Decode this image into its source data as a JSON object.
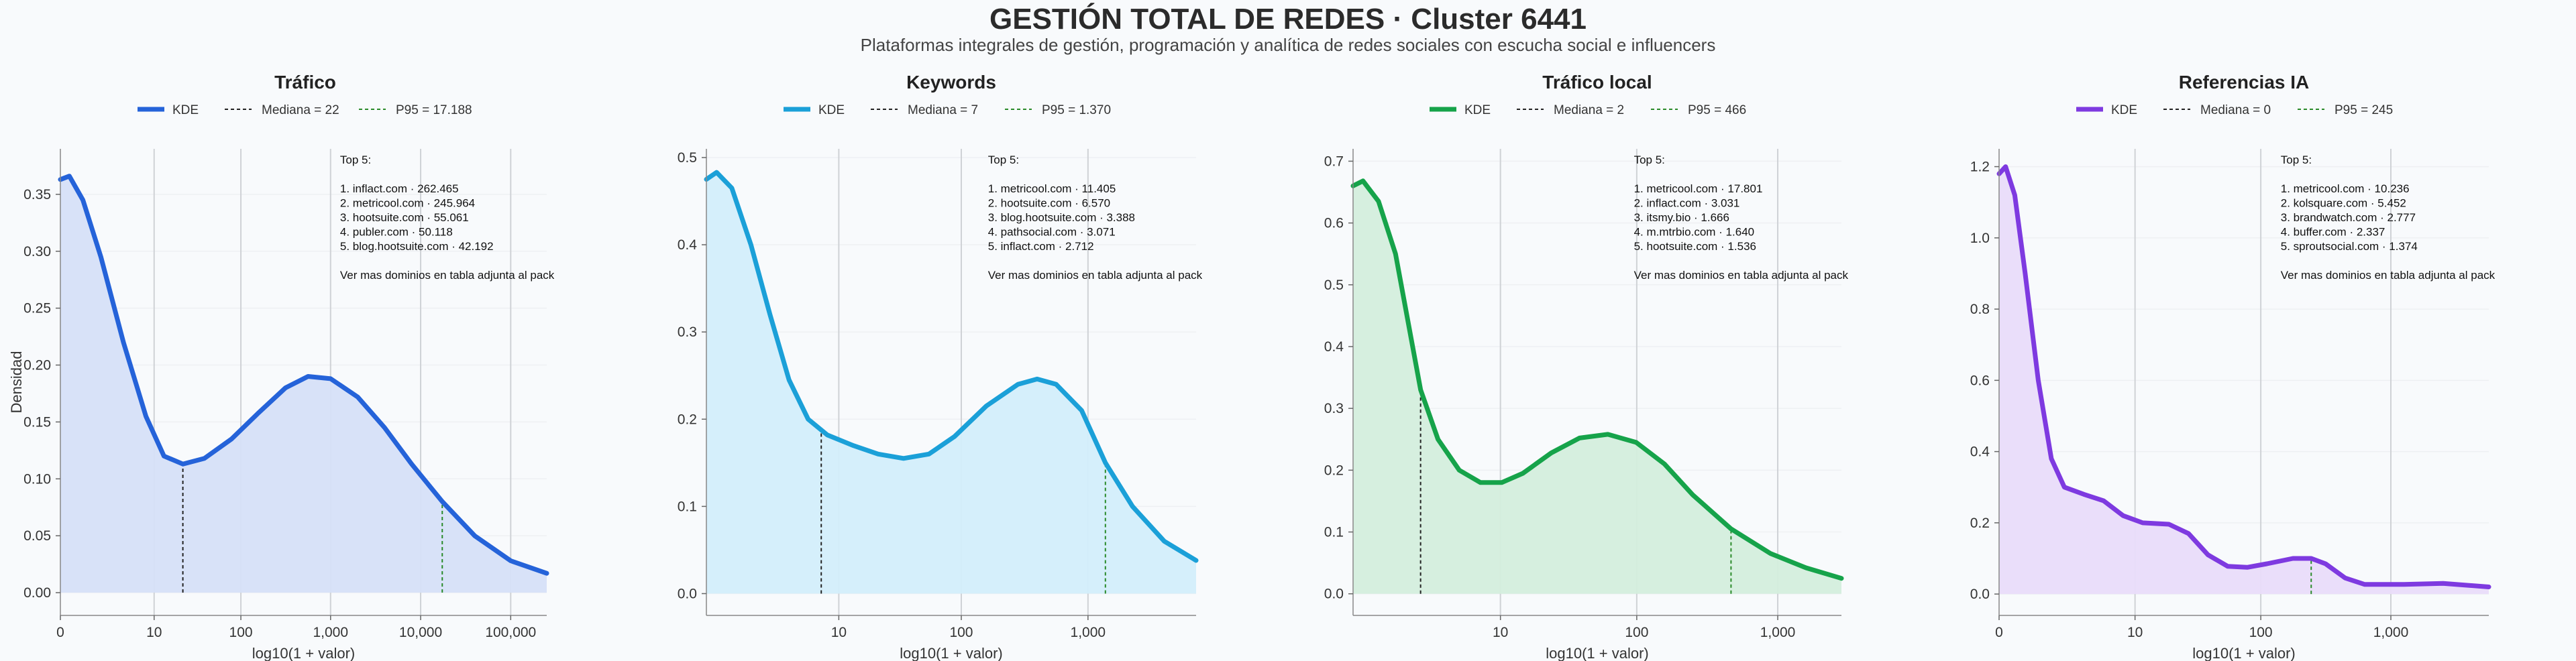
{
  "title": "GESTIÓN TOTAL DE REDES · Cluster 6441",
  "subtitle": "Plataformas integrales de gestión, programación y analítica de redes sociales con escucha social e influencers",
  "ylabel": "Densidad",
  "chart_data": [
    {
      "type": "area",
      "title": "Tráfico",
      "color": "#2563d9",
      "fill": "#d6e0f8",
      "legend": [
        "KDE",
        "Mediana = 22",
        "P95 = 17.188"
      ],
      "xlabel": "log10(1 + valor)",
      "xlim": [
        0,
        5.4
      ],
      "ylim": [
        -0.02,
        0.39
      ],
      "xticks": [
        {
          "v": 0,
          "label": "0"
        },
        {
          "v": 1.041,
          "label": "10"
        },
        {
          "v": 2.004,
          "label": "100"
        },
        {
          "v": 3.0,
          "label": "1,000"
        },
        {
          "v": 4.0,
          "label": "10,000"
        },
        {
          "v": 5.0,
          "label": "100,000"
        }
      ],
      "yticks": [
        0.0,
        0.05,
        0.1,
        0.15,
        0.2,
        0.25,
        0.3,
        0.35
      ],
      "ytick_labels": [
        "0.00",
        "0.05",
        "0.10",
        "0.15",
        "0.20",
        "0.25",
        "0.30",
        "0.35"
      ],
      "median_x": 1.36,
      "p95_x": 4.24,
      "kde": [
        [
          0,
          0.363
        ],
        [
          0.1,
          0.366
        ],
        [
          0.25,
          0.345
        ],
        [
          0.45,
          0.295
        ],
        [
          0.7,
          0.22
        ],
        [
          0.95,
          0.155
        ],
        [
          1.15,
          0.12
        ],
        [
          1.36,
          0.113
        ],
        [
          1.6,
          0.118
        ],
        [
          1.9,
          0.135
        ],
        [
          2.2,
          0.158
        ],
        [
          2.5,
          0.18
        ],
        [
          2.75,
          0.19
        ],
        [
          3.0,
          0.188
        ],
        [
          3.3,
          0.172
        ],
        [
          3.6,
          0.145
        ],
        [
          3.9,
          0.113
        ],
        [
          4.24,
          0.08
        ],
        [
          4.6,
          0.05
        ],
        [
          5.0,
          0.028
        ],
        [
          5.4,
          0.017
        ]
      ],
      "annotation": [
        "Top 5:",
        "",
        "1. inflact.com · 262.465",
        "2. metricool.com · 245.964",
        "3. hootsuite.com · 55.061",
        "4. publer.com · 50.118",
        "5. blog.hootsuite.com · 42.192",
        "",
        "Ver mas dominios en tabla adjunta al pack"
      ]
    },
    {
      "type": "area",
      "title": "Keywords",
      "color": "#1ba0d8",
      "fill": "#d3eefb",
      "legend": [
        "KDE",
        "Mediana = 7",
        "P95 = 1.370"
      ],
      "xlabel": "log10(1 + valor)",
      "xlim": [
        0,
        3.85
      ],
      "ylim": [
        -0.025,
        0.51
      ],
      "xticks": [
        {
          "v": 1.041,
          "label": "10"
        },
        {
          "v": 2.004,
          "label": "100"
        },
        {
          "v": 3.0,
          "label": "1,000"
        }
      ],
      "yticks": [
        0.0,
        0.1,
        0.2,
        0.3,
        0.4,
        0.5
      ],
      "ytick_labels": [
        "0.0",
        "0.1",
        "0.2",
        "0.3",
        "0.4",
        "0.5"
      ],
      "median_x": 0.903,
      "p95_x": 3.137,
      "kde": [
        [
          0,
          0.475
        ],
        [
          0.08,
          0.483
        ],
        [
          0.2,
          0.465
        ],
        [
          0.35,
          0.4
        ],
        [
          0.5,
          0.32
        ],
        [
          0.65,
          0.245
        ],
        [
          0.8,
          0.2
        ],
        [
          0.95,
          0.182
        ],
        [
          1.15,
          0.17
        ],
        [
          1.35,
          0.16
        ],
        [
          1.55,
          0.155
        ],
        [
          1.75,
          0.16
        ],
        [
          1.95,
          0.18
        ],
        [
          2.2,
          0.215
        ],
        [
          2.45,
          0.24
        ],
        [
          2.6,
          0.246
        ],
        [
          2.75,
          0.24
        ],
        [
          2.95,
          0.21
        ],
        [
          3.137,
          0.15
        ],
        [
          3.35,
          0.1
        ],
        [
          3.6,
          0.06
        ],
        [
          3.85,
          0.038
        ]
      ],
      "annotation": [
        "Top 5:",
        "",
        "1. metricool.com · 11.405",
        "2. hootsuite.com · 6.570",
        "3. blog.hootsuite.com · 3.388",
        "4. pathsocial.com · 3.071",
        "5. inflact.com · 2.712",
        "",
        "Ver mas dominios en tabla adjunta al pack"
      ]
    },
    {
      "type": "area",
      "title": "Tráfico local",
      "color": "#16a34a",
      "fill": "#d4eedd",
      "legend": [
        "KDE",
        "Mediana = 2",
        "P95 = 466"
      ],
      "xlabel": "log10(1 + valor)",
      "xlim": [
        0,
        3.45
      ],
      "ylim": [
        -0.035,
        0.72
      ],
      "xticks": [
        {
          "v": 1.041,
          "label": "10"
        },
        {
          "v": 2.004,
          "label": "100"
        },
        {
          "v": 3.0,
          "label": "1,000"
        }
      ],
      "yticks": [
        0.0,
        0.1,
        0.2,
        0.3,
        0.4,
        0.5,
        0.6,
        0.7
      ],
      "ytick_labels": [
        "0.0",
        "0.1",
        "0.2",
        "0.3",
        "0.4",
        "0.5",
        "0.6",
        "0.7"
      ],
      "median_x": 0.477,
      "p95_x": 2.67,
      "kde": [
        [
          0,
          0.66
        ],
        [
          0.07,
          0.668
        ],
        [
          0.18,
          0.635
        ],
        [
          0.3,
          0.55
        ],
        [
          0.477,
          0.33
        ],
        [
          0.6,
          0.25
        ],
        [
          0.75,
          0.2
        ],
        [
          0.9,
          0.18
        ],
        [
          1.05,
          0.18
        ],
        [
          1.2,
          0.195
        ],
        [
          1.4,
          0.228
        ],
        [
          1.6,
          0.252
        ],
        [
          1.8,
          0.258
        ],
        [
          2.0,
          0.245
        ],
        [
          2.2,
          0.21
        ],
        [
          2.4,
          0.16
        ],
        [
          2.67,
          0.105
        ],
        [
          2.95,
          0.065
        ],
        [
          3.2,
          0.042
        ],
        [
          3.45,
          0.025
        ]
      ],
      "annotation": [
        "Top 5:",
        "",
        "1. metricool.com · 17.801",
        "2. inflact.com · 3.031",
        "3. itsmy.bio · 1.666",
        "4. m.mtrbio.com · 1.640",
        "5. hootsuite.com · 1.536",
        "",
        "Ver mas dominios en tabla adjunta al pack"
      ]
    },
    {
      "type": "area",
      "title": "Referencias IA",
      "color": "#7e3ae0",
      "fill": "#e9dcfa",
      "legend": [
        "KDE",
        "Mediana = 0",
        "P95 = 245"
      ],
      "xlabel": "log10(1 + valor)",
      "xlim": [
        0,
        3.75
      ],
      "ylim": [
        -0.06,
        1.25
      ],
      "xticks": [
        {
          "v": 0,
          "label": "0"
        },
        {
          "v": 1.041,
          "label": "10"
        },
        {
          "v": 2.004,
          "label": "100"
        },
        {
          "v": 3.0,
          "label": "1,000"
        }
      ],
      "yticks": [
        0.0,
        0.2,
        0.4,
        0.6,
        0.8,
        1.0,
        1.2
      ],
      "ytick_labels": [
        "0.0",
        "0.2",
        "0.4",
        "0.6",
        "0.8",
        "1.0",
        "1.2"
      ],
      "median_x": 0,
      "p95_x": 2.39,
      "kde": [
        [
          0,
          1.18
        ],
        [
          0.05,
          1.2
        ],
        [
          0.12,
          1.12
        ],
        [
          0.2,
          0.9
        ],
        [
          0.3,
          0.6
        ],
        [
          0.4,
          0.38
        ],
        [
          0.5,
          0.3
        ],
        [
          0.65,
          0.28
        ],
        [
          0.8,
          0.262
        ],
        [
          0.95,
          0.22
        ],
        [
          1.1,
          0.2
        ],
        [
          1.3,
          0.196
        ],
        [
          1.45,
          0.17
        ],
        [
          1.6,
          0.11
        ],
        [
          1.75,
          0.078
        ],
        [
          1.9,
          0.075
        ],
        [
          2.05,
          0.085
        ],
        [
          2.25,
          0.1
        ],
        [
          2.39,
          0.1
        ],
        [
          2.5,
          0.085
        ],
        [
          2.65,
          0.045
        ],
        [
          2.8,
          0.027
        ],
        [
          3.1,
          0.027
        ],
        [
          3.4,
          0.03
        ],
        [
          3.75,
          0.02
        ]
      ],
      "annotation": [
        "Top 5:",
        "",
        "1. metricool.com · 10.236",
        "2. kolsquare.com · 5.452",
        "3. brandwatch.com · 2.777",
        "4. buffer.com · 2.337",
        "5. sproutsocial.com · 1.374",
        "",
        "Ver mas dominios en tabla adjunta al pack"
      ]
    }
  ]
}
